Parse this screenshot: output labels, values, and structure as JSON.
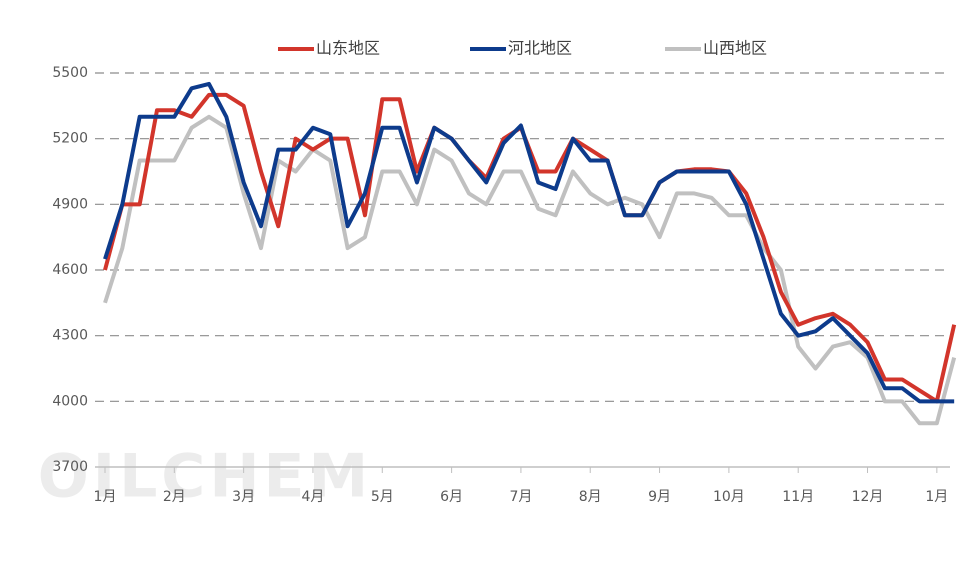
{
  "chart_data": {
    "type": "line",
    "watermark": "OILCHEM",
    "categories": [
      "1月",
      null,
      null,
      null,
      "2月",
      null,
      null,
      null,
      "3月",
      null,
      null,
      null,
      "4月",
      null,
      null,
      null,
      "5月",
      null,
      null,
      null,
      "6月",
      null,
      null,
      null,
      "7月",
      null,
      null,
      null,
      "8月",
      null,
      null,
      null,
      "9月",
      null,
      null,
      null,
      "10月",
      null,
      null,
      null,
      "11月",
      null,
      null,
      null,
      "12月",
      null,
      null,
      null,
      "1月",
      null
    ],
    "series": [
      {
        "name": "山东地区",
        "color": "#d2352b",
        "values": [
          4600,
          4900,
          4900,
          5330,
          5330,
          5300,
          5400,
          5400,
          5350,
          5050,
          4800,
          5200,
          5150,
          5200,
          5200,
          4850,
          5380,
          5380,
          5050,
          5250,
          5200,
          5100,
          5020,
          5200,
          5250,
          5050,
          5050,
          5200,
          5150,
          5100,
          4850,
          4850,
          5000,
          5050,
          5060,
          5060,
          5050,
          4950,
          4750,
          4500,
          4350,
          4380,
          4400,
          4350,
          4270,
          4100,
          4100,
          4050,
          4000,
          4350
        ]
      },
      {
        "name": "河北地区",
        "color": "#0d3b8c",
        "values": [
          4650,
          4900,
          5300,
          5300,
          5300,
          5430,
          5450,
          5300,
          5000,
          4800,
          5150,
          5150,
          5250,
          5220,
          4800,
          4950,
          5250,
          5250,
          5000,
          5250,
          5200,
          5100,
          5000,
          5180,
          5260,
          5000,
          4970,
          5200,
          5100,
          5100,
          4850,
          4850,
          5000,
          5050,
          5050,
          5050,
          5050,
          4900,
          4650,
          4400,
          4300,
          4320,
          4380,
          4300,
          4220,
          4060,
          4060,
          4000,
          4000,
          4000
        ]
      },
      {
        "name": "山西地区",
        "color": "#c0c0c0",
        "values": [
          4450,
          4700,
          5100,
          5100,
          5100,
          5250,
          5300,
          5250,
          4950,
          4700,
          5100,
          5050,
          5150,
          5100,
          4700,
          4750,
          5050,
          5050,
          4900,
          5150,
          5100,
          4950,
          4900,
          5050,
          5050,
          4880,
          4850,
          5050,
          4950,
          4900,
          4930,
          4900,
          4750,
          4950,
          4950,
          4930,
          4850,
          4850,
          4700,
          4600,
          4250,
          4150,
          4250,
          4270,
          4200,
          4000,
          4000,
          3900,
          3900,
          4200
        ]
      }
    ],
    "ylim": [
      3700,
      5500
    ],
    "yticks": [
      3700,
      4000,
      4300,
      4600,
      4900,
      5200,
      5500
    ],
    "grid": true,
    "legend": "top"
  }
}
